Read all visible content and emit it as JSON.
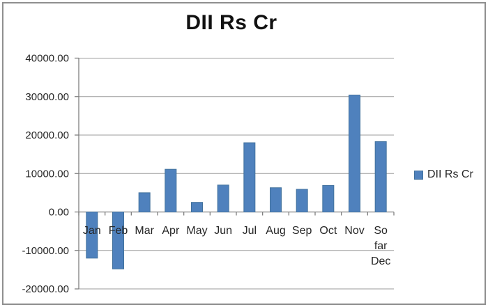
{
  "chart_data": {
    "type": "bar",
    "title": "DII Rs Cr",
    "categories": [
      "Jan",
      "Feb",
      "Mar",
      "Apr",
      "May",
      "Jun",
      "Jul",
      "Aug",
      "Sep",
      "Oct",
      "Nov",
      "So far Dec"
    ],
    "values": [
      -12000,
      -14800,
      5000,
      11100,
      2500,
      7000,
      18000,
      6300,
      5900,
      6900,
      30400,
      18300
    ],
    "series_name": "DII Rs Cr",
    "xlabel": "",
    "ylabel": "",
    "ylim": [
      -20000,
      40000
    ],
    "ytick_step": 10000,
    "ytick_labels": [
      "40000.00",
      "30000.00",
      "20000.00",
      "10000.00",
      "0.00",
      "-10000.00",
      "-20000.00"
    ],
    "grid": true,
    "legend_position": "right",
    "colors": {
      "bar_fill": "#4f81bd",
      "bar_border": "#41719c",
      "gridline": "#9b9b9b",
      "axis": "#7f7f7f",
      "tick_text": "#262626",
      "title_text": "#111111",
      "frame_border": "#8f8f8f",
      "background": "#ffffff"
    }
  },
  "legend": {
    "label": "DII Rs Cr"
  }
}
